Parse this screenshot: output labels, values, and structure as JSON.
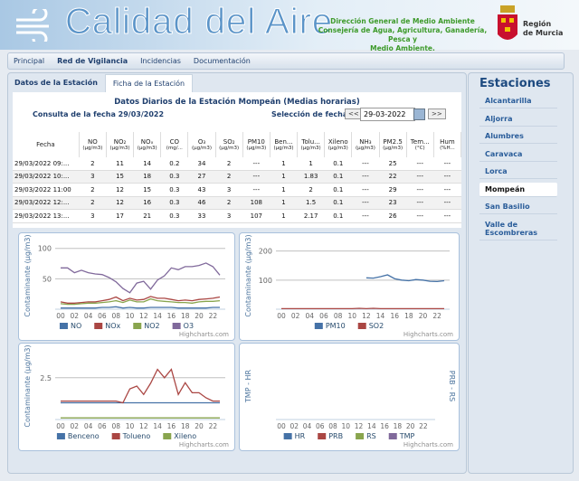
{
  "header": {
    "title": "Calidad del Aire",
    "agency": [
      "Dirección General de Medio Ambiente",
      "Consejería de Agua, Agricultura, Ganadería, Pesca y",
      "Medio Ambiente."
    ],
    "region": [
      "Región",
      "de Murcia"
    ]
  },
  "nav": [
    "Principal",
    "Red de Vigilancia",
    "Incidencias",
    "Documentación"
  ],
  "tabs": [
    "Datos de la Estación",
    "Ficha de la Estación"
  ],
  "panel": {
    "title": "Datos Diarios de la Estación Mompeán (Medias horarias)",
    "query": "Consulta de la fecha 29/03/2022",
    "date_label": "Selección de fecha",
    "prev": "<<",
    "date": "29-03-2022",
    "next": ">>"
  },
  "table": {
    "columns": [
      {
        "name": "Fecha"
      },
      {
        "name": "NO",
        "unit": "(µg/m3)"
      },
      {
        "name": "NO₂",
        "unit": "(µg/m3)"
      },
      {
        "name": "NOₓ",
        "unit": "(µg/m3)"
      },
      {
        "name": "CO",
        "unit": "(mg/..."
      },
      {
        "name": "O₃",
        "unit": "(µg/m3)"
      },
      {
        "name": "SO₂",
        "unit": "(µg/m3)"
      },
      {
        "name": "PM10",
        "unit": "(µg/m3)"
      },
      {
        "name": "Ben...",
        "unit": "(µg/m3)"
      },
      {
        "name": "Tolu...",
        "unit": "(µg/m3)"
      },
      {
        "name": "Xileno",
        "unit": "(µg/m3)"
      },
      {
        "name": "NH₃",
        "unit": "(µg/m3)"
      },
      {
        "name": "PM2.5",
        "unit": "(µg/m3)"
      },
      {
        "name": "Tem...",
        "unit": "(°C)"
      },
      {
        "name": "Hum",
        "unit": "(%H..."
      }
    ],
    "rows": [
      [
        "29/03/2022 09:...",
        "2",
        "11",
        "14",
        "0.2",
        "34",
        "2",
        "---",
        "1",
        "1",
        "0.1",
        "---",
        "25",
        "---",
        "---"
      ],
      [
        "29/03/2022 10:...",
        "3",
        "15",
        "18",
        "0.3",
        "27",
        "2",
        "---",
        "1",
        "1.83",
        "0.1",
        "---",
        "22",
        "---",
        "---"
      ],
      [
        "29/03/2022 11:00",
        "2",
        "12",
        "15",
        "0.3",
        "43",
        "3",
        "---",
        "1",
        "2",
        "0.1",
        "---",
        "29",
        "---",
        "---"
      ],
      [
        "29/03/2022 12:...",
        "2",
        "12",
        "16",
        "0.3",
        "46",
        "2",
        "108",
        "1",
        "1.5",
        "0.1",
        "---",
        "23",
        "---",
        "---"
      ],
      [
        "29/03/2022 13:...",
        "3",
        "17",
        "21",
        "0.3",
        "33",
        "3",
        "107",
        "1",
        "2.17",
        "0.1",
        "---",
        "26",
        "---",
        "---"
      ]
    ]
  },
  "sidebar": {
    "title": "Estaciones",
    "stations": [
      "Alcantarilla",
      "Aljorra",
      "Alumbres",
      "Caravaca",
      "Lorca",
      "Mompeán",
      "San Basilio",
      "Valle de Escombreras"
    ],
    "selected": 5
  },
  "charts": [
    {
      "type": "line",
      "y_title": "Contaminante (µg/m3)",
      "credit": "Highcharts.com",
      "x": [
        "00",
        null,
        "02",
        null,
        "04",
        null,
        "06",
        null,
        "08",
        null,
        "10",
        null,
        "12",
        null,
        "14",
        null,
        "16",
        null,
        "18",
        null,
        "20",
        null,
        "22",
        null
      ],
      "ylim": [
        0,
        110
      ],
      "yticks": [
        50,
        100
      ],
      "series": [
        {
          "name": "NO",
          "color": "#4572A7",
          "values": [
            2,
            2,
            2,
            2,
            2,
            2,
            3,
            3,
            4,
            2,
            3,
            2,
            2,
            3,
            3,
            3,
            3,
            2,
            2,
            2,
            2,
            2,
            3,
            3
          ]
        },
        {
          "name": "NOx",
          "color": "#AA4643",
          "values": [
            12,
            10,
            10,
            11,
            12,
            12,
            14,
            16,
            20,
            14,
            18,
            15,
            16,
            21,
            18,
            18,
            16,
            14,
            15,
            14,
            16,
            17,
            18,
            20
          ]
        },
        {
          "name": "NO2",
          "color": "#89A54E",
          "values": [
            9,
            8,
            8,
            9,
            10,
            10,
            11,
            12,
            14,
            11,
            15,
            12,
            12,
            17,
            14,
            13,
            12,
            11,
            11,
            10,
            12,
            13,
            13,
            14
          ]
        },
        {
          "name": "O3",
          "color": "#80699B",
          "values": [
            68,
            68,
            60,
            64,
            60,
            58,
            57,
            52,
            45,
            34,
            27,
            43,
            46,
            33,
            48,
            55,
            68,
            65,
            70,
            70,
            72,
            76,
            70,
            56
          ]
        }
      ]
    },
    {
      "type": "line",
      "y_title": "Contaminante (µg/m3)",
      "credit": "Highcharts.com",
      "x": [
        "00",
        null,
        "02",
        null,
        "04",
        null,
        "06",
        null,
        "08",
        null,
        "10",
        null,
        "12",
        null,
        "14",
        null,
        "16",
        null,
        "18",
        null,
        "20",
        null,
        "22",
        null
      ],
      "ylim": [
        0,
        230
      ],
      "yticks": [
        100,
        200
      ],
      "series": [
        {
          "name": "PM10",
          "color": "#4572A7",
          "values": [
            null,
            null,
            null,
            null,
            null,
            null,
            null,
            null,
            null,
            null,
            null,
            null,
            108,
            107,
            112,
            118,
            105,
            100,
            98,
            102,
            100,
            96,
            95,
            98
          ]
        },
        {
          "name": "SO2",
          "color": "#AA4643",
          "values": [
            2,
            2,
            2,
            2,
            2,
            2,
            2,
            2,
            2,
            2,
            2,
            3,
            2,
            3,
            2,
            2,
            2,
            2,
            2,
            2,
            2,
            2,
            2,
            2
          ]
        }
      ]
    },
    {
      "type": "line",
      "y_title": "Contaminante (µg/m3)",
      "credit": "Highcharts.com",
      "x": [
        "00",
        null,
        "02",
        null,
        "04",
        null,
        "06",
        null,
        "08",
        null,
        "10",
        null,
        "12",
        null,
        "14",
        null,
        "16",
        null,
        "18",
        null,
        "20",
        null,
        "22",
        null
      ],
      "ylim": [
        0,
        4
      ],
      "yticks": [
        2.5
      ],
      "series": [
        {
          "name": "Benceno",
          "color": "#4572A7",
          "values": [
            1,
            1,
            1,
            1,
            1,
            1,
            1,
            1,
            1,
            1,
            1,
            1,
            1,
            1,
            1,
            1,
            1,
            1,
            1,
            1,
            1,
            1,
            1,
            1
          ]
        },
        {
          "name": "Tolueno",
          "color": "#AA4643",
          "values": [
            1.1,
            1.1,
            1.1,
            1.1,
            1.1,
            1.1,
            1.1,
            1.1,
            1.1,
            1,
            1.83,
            2,
            1.5,
            2.17,
            3,
            2.5,
            3,
            1.5,
            2.2,
            1.6,
            1.6,
            1.3,
            1.1,
            1.1
          ]
        },
        {
          "name": "Xileno",
          "color": "#89A54E",
          "values": [
            0.1,
            0.1,
            0.1,
            0.1,
            0.1,
            0.1,
            0.1,
            0.1,
            0.1,
            0.1,
            0.1,
            0.1,
            0.1,
            0.1,
            0.1,
            0.1,
            0.1,
            0.1,
            0.1,
            0.1,
            0.1,
            0.1,
            0.1,
            0.1
          ]
        }
      ]
    },
    {
      "type": "line",
      "y_title": "TMP - HR",
      "y2_title": "PRB - RS",
      "credit": "Highcharts.com",
      "x": [
        "00",
        null,
        "02",
        null,
        "04",
        null,
        "06",
        null,
        "08",
        null,
        "10",
        null,
        "12",
        null,
        "14",
        null,
        "16",
        null,
        "18",
        null,
        "20",
        null,
        "22",
        null
      ],
      "series": [
        {
          "name": "HR",
          "color": "#4572A7"
        },
        {
          "name": "PRB",
          "color": "#AA4643"
        },
        {
          "name": "RS",
          "color": "#89A54E"
        },
        {
          "name": "TMP",
          "color": "#80699B"
        }
      ]
    }
  ]
}
